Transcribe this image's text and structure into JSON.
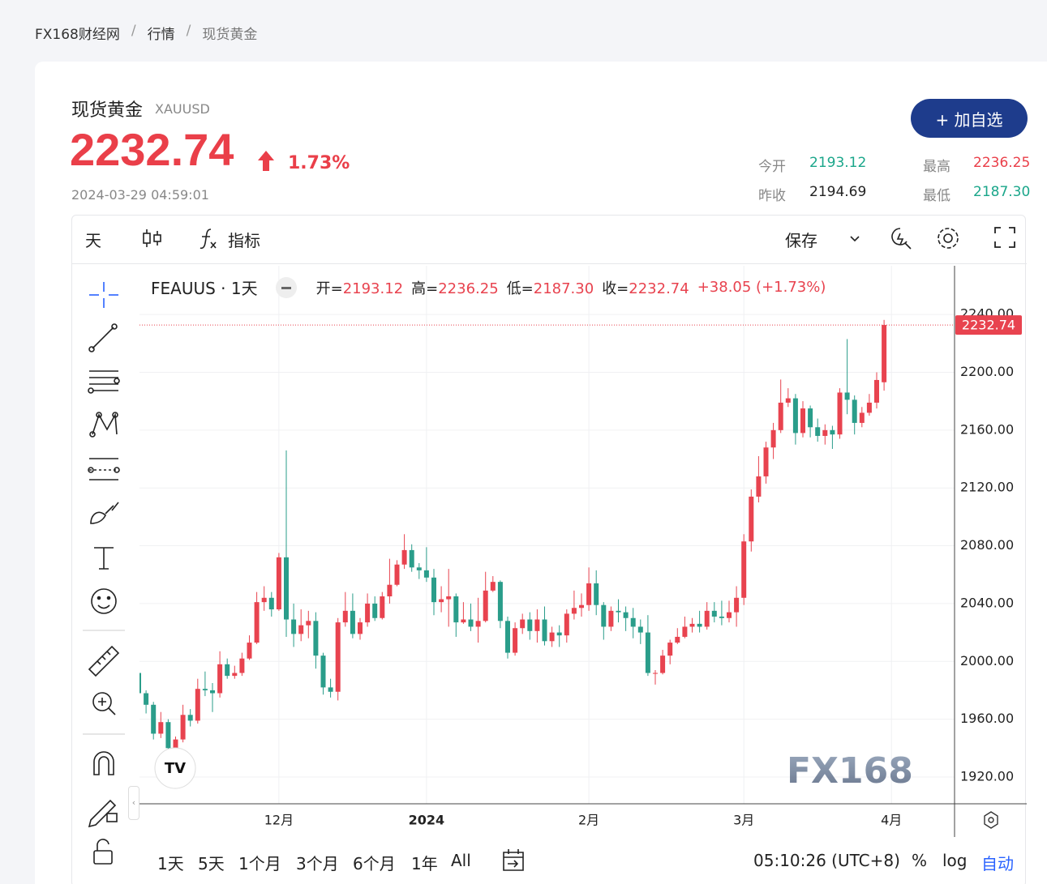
{
  "breadcrumb": [
    "FX168财经网",
    "行情",
    "现货黄金"
  ],
  "header": {
    "name": "现货黄金",
    "symbol": "XAUUSD",
    "price": "2232.74",
    "change": "1.73%",
    "time": "2024-03-29 04:59:01",
    "button": "+ 加自选"
  },
  "stats": [
    {
      "label": "今开",
      "value": "2193.12"
    },
    {
      "label": "最高",
      "value": "2236.25"
    },
    {
      "label": "昨收",
      "value": "2194.69"
    },
    {
      "label": "最低",
      "value": "2187.30"
    }
  ],
  "toolbar": {
    "interval": "天",
    "indicators": "指标",
    "save": "保存"
  },
  "legend": {
    "symbol": "FEAUUS · 1天",
    "items": [
      {
        "label": "开=",
        "value": "2193.12"
      },
      {
        "label": "高=",
        "value": "2236.25"
      },
      {
        "label": "低=",
        "value": "2187.30"
      },
      {
        "label": "收=",
        "value": "2232.74"
      }
    ],
    "change": "+38.05 (+1.73%)"
  },
  "watermark": "FX168",
  "bottom_bar": {
    "ranges": [
      "1天",
      "5天",
      "1个月",
      "3个月",
      "6个月",
      "1年",
      "All"
    ],
    "clock": "05:10:26 (UTC+8)",
    "options": [
      "%",
      "log",
      "自动"
    ]
  },
  "chart_data": {
    "type": "candlestick",
    "up_color": "#e8434f",
    "down_color": "#2a9d8a",
    "grid": true,
    "categories": [
      null,
      null,
      null,
      null,
      null,
      null,
      null,
      null,
      null,
      null,
      null,
      null,
      null,
      null,
      null,
      null,
      null,
      null,
      null,
      "12月",
      null,
      null,
      null,
      null,
      null,
      null,
      null,
      null,
      null,
      null,
      null,
      null,
      null,
      null,
      null,
      null,
      null,
      null,
      null,
      "2024",
      null,
      null,
      null,
      null,
      null,
      null,
      null,
      null,
      null,
      null,
      null,
      null,
      null,
      null,
      null,
      null,
      null,
      null,
      null,
      null,
      null,
      "2月",
      null,
      null,
      null,
      null,
      null,
      null,
      null,
      null,
      null,
      null,
      null,
      null,
      null,
      null,
      null,
      null,
      null,
      null,
      null,
      null,
      "3月",
      null,
      null,
      null,
      null,
      null,
      null,
      null,
      null,
      null,
      null,
      null,
      null,
      null,
      null,
      null,
      null,
      null,
      null,
      null,
      "4月"
    ],
    "open": [
      1992,
      1978,
      1970,
      1950,
      1958,
      1940,
      1946,
      1963,
      1959,
      1981,
      1980,
      1978,
      1998,
      1990,
      1992,
      2002,
      2013,
      2041,
      2044,
      2036,
      2072,
      2029,
      2019,
      2025,
      2028,
      2004,
      1982,
      1979,
      2027,
      2035,
      2019,
      2027,
      2040,
      2030,
      2045,
      2053,
      2067,
      2077,
      2065,
      2063,
      2058,
      2041,
      2043,
      2045,
      2027,
      2029,
      2024,
      2028,
      2049,
      2055,
      2028,
      2006,
      2023,
      2029,
      2021,
      2029,
      2014,
      2020,
      2018,
      2033,
      2037,
      2039,
      2054,
      2039,
      2024,
      2035,
      2034,
      2030,
      2024,
      2020,
      1992,
      1992,
      2004,
      2013,
      2017,
      2024,
      2026,
      2024,
      2035,
      2031,
      2030,
      2034,
      2044,
      2083,
      2114,
      2128,
      2148,
      2160,
      2179,
      2182,
      2158,
      2175,
      2162,
      2156,
      2160,
      2157,
      2186,
      2181,
      2165,
      2172,
      2179,
      2193.12,
      null
    ],
    "high": [
      1995,
      1980,
      1972,
      1965,
      1960,
      1948,
      1970,
      1967,
      1988,
      1993,
      1985,
      2007,
      2002,
      1997,
      2006,
      2018,
      2048,
      2052,
      2048,
      2075,
      2146,
      2040,
      2036,
      2035,
      2034,
      2006,
      1988,
      2030,
      2048,
      2047,
      2030,
      2047,
      2045,
      2048,
      2071,
      2070,
      2088,
      2081,
      2068,
      2079,
      2064,
      2052,
      2064,
      2047,
      2041,
      2040,
      2044,
      2062,
      2059,
      2056,
      2031,
      2027,
      2033,
      2034,
      2036,
      2038,
      2024,
      2025,
      2036,
      2049,
      2047,
      2065,
      2063,
      2041,
      2038,
      2043,
      2038,
      2037,
      2029,
      2032,
      1994,
      2008,
      2015,
      2023,
      2031,
      2030,
      2035,
      2041,
      2041,
      2042,
      2042,
      2052,
      2088,
      2119,
      2142,
      2152,
      2165,
      2195,
      2189,
      2185,
      2180,
      2177,
      2168,
      2164,
      2163,
      2189,
      2223,
      2184,
      2176,
      2185,
      2200,
      2236.25,
      null
    ],
    "low": [
      1965,
      1964,
      1946,
      1947,
      1932,
      1931,
      1944,
      1955,
      1957,
      1976,
      1965,
      1975,
      1988,
      1988,
      1990,
      2001,
      2012,
      2035,
      2031,
      2035,
      2017,
      2010,
      2014,
      2016,
      1995,
      1977,
      1975,
      1973,
      2024,
      2016,
      2015,
      2024,
      2028,
      2029,
      2040,
      2052,
      2064,
      2062,
      2057,
      2055,
      2032,
      2034,
      2024,
      2017,
      2026,
      2021,
      2013,
      2027,
      2048,
      2023,
      2002,
      2004,
      2019,
      2015,
      2013,
      2011,
      2010,
      2010,
      2013,
      2029,
      2031,
      2035,
      2032,
      2015,
      2021,
      2027,
      2021,
      2016,
      2012,
      1990,
      1984,
      1991,
      1998,
      2012,
      2016,
      2020,
      2020,
      2022,
      2027,
      2025,
      2027,
      2024,
      2039,
      2076,
      2110,
      2123,
      2140,
      2158,
      2176,
      2150,
      2155,
      2155,
      2152,
      2150,
      2147,
      2154,
      2171,
      2157,
      2162,
      2170,
      2175,
      2187.3,
      null
    ],
    "close": [
      1978,
      1970,
      1950,
      1958,
      1940,
      1946,
      1963,
      1959,
      1981,
      1980,
      1978,
      1998,
      1990,
      1992,
      2002,
      2013,
      2041,
      2044,
      2036,
      2072,
      2029,
      2019,
      2025,
      2028,
      2004,
      1982,
      1979,
      2027,
      2035,
      2019,
      2027,
      2040,
      2030,
      2045,
      2053,
      2067,
      2077,
      2065,
      2063,
      2058,
      2041,
      2043,
      2045,
      2027,
      2029,
      2024,
      2028,
      2049,
      2055,
      2028,
      2006,
      2023,
      2029,
      2021,
      2029,
      2014,
      2020,
      2018,
      2033,
      2037,
      2039,
      2054,
      2039,
      2024,
      2035,
      2034,
      2030,
      2024,
      2020,
      1992,
      1992,
      2004,
      2013,
      2017,
      2024,
      2026,
      2024,
      2035,
      2031,
      2030,
      2034,
      2044,
      2083,
      2114,
      2128,
      2148,
      2160,
      2179,
      2182,
      2158,
      2175,
      2162,
      2156,
      2160,
      2157,
      2186,
      2181,
      2165,
      2172,
      2179,
      2194.69,
      2232.74,
      null
    ],
    "ylim": [
      1901.5,
      2273.7
    ],
    "yticks": [
      {
        "value": 1920,
        "label": "1920.00"
      },
      {
        "value": 1960,
        "label": "1960.00"
      },
      {
        "value": 2000,
        "label": "2000.00"
      },
      {
        "value": 2040,
        "label": "2040.00"
      },
      {
        "value": 2080,
        "label": "2080.00"
      },
      {
        "value": 2120,
        "label": "2120.00"
      },
      {
        "value": 2160,
        "label": "2160.00"
      },
      {
        "value": 2200,
        "label": "2200.00"
      },
      {
        "value": 2240,
        "label": "2240.00"
      }
    ]
  }
}
